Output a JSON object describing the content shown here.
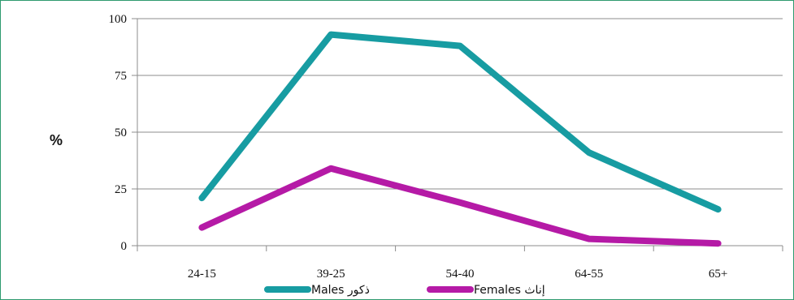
{
  "chart_data": {
    "type": "line",
    "categories": [
      "24-15",
      "39-25",
      "54-40",
      "64-55",
      "65+"
    ],
    "series": [
      {
        "name": "Males  ذكور",
        "color": "#179ca2",
        "values": [
          21,
          93,
          88,
          41,
          16
        ]
      },
      {
        "name": "Females  إناث",
        "color": "#b51aa6",
        "values": [
          8,
          34,
          19,
          3,
          1
        ]
      }
    ],
    "title": "",
    "xlabel": "",
    "ylabel": "%",
    "ylim": [
      0,
      100
    ],
    "yticks": [
      "0",
      "25",
      "50",
      "75",
      "100"
    ],
    "grid": true,
    "legend": "bottom"
  }
}
